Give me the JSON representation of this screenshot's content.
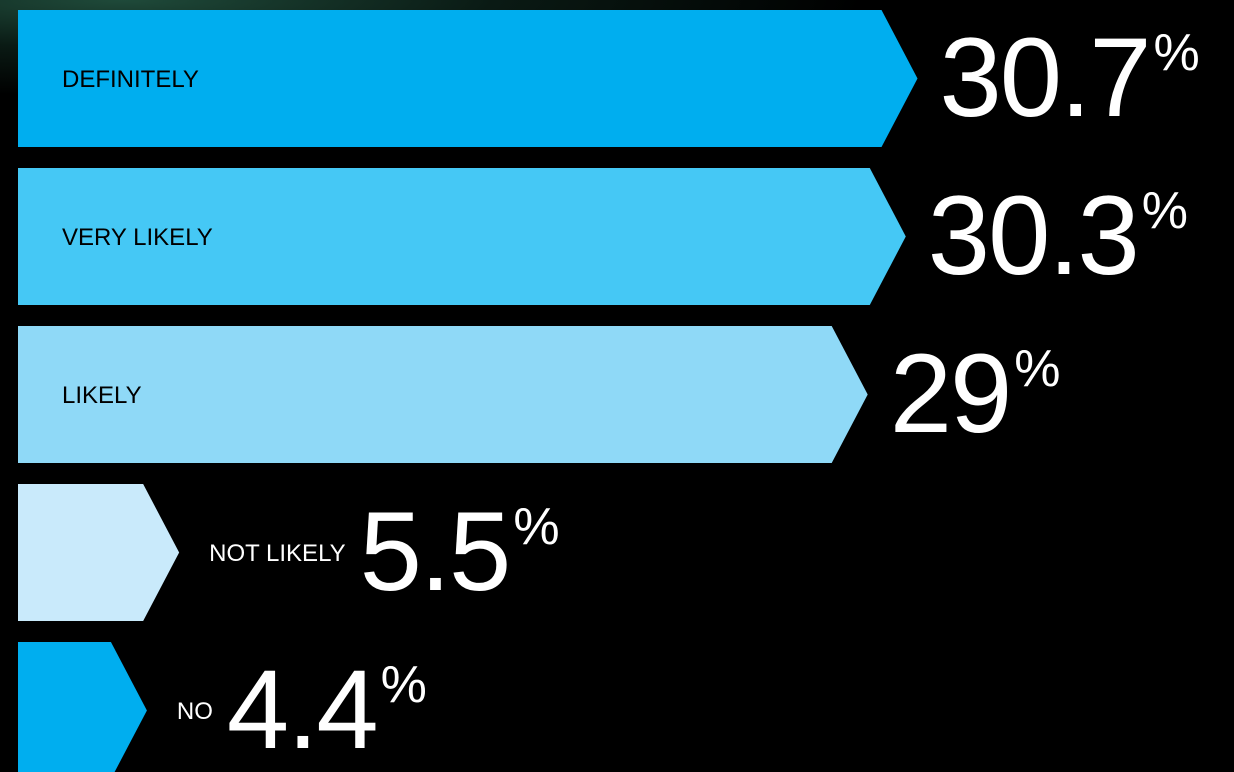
{
  "chart_data": {
    "type": "bar",
    "categories": [
      "DEFINITELY",
      "VERY LIKELY",
      "LIKELY",
      "NOT LIKELY",
      "NO"
    ],
    "values": [
      30.7,
      30.3,
      29,
      5.5,
      4.4
    ],
    "unit": "%",
    "colors": [
      "#00aeef",
      "#45c8f5",
      "#8fd9f7",
      "#c9eafb",
      "#00aeef"
    ]
  }
}
